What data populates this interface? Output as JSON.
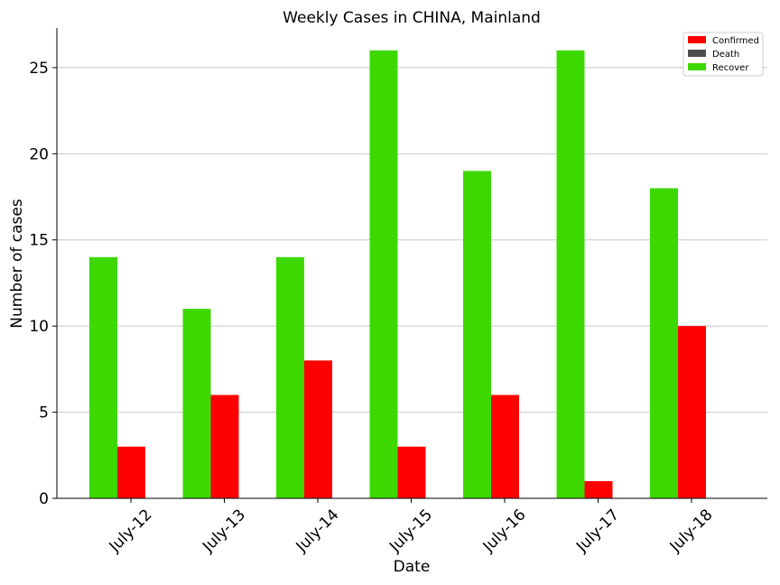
{
  "chart_data": {
    "type": "bar",
    "title": "Weekly Cases in CHINA, Mainland",
    "xlabel": "Date",
    "ylabel": "Number of cases",
    "categories": [
      "July-12",
      "July-13",
      "July-14",
      "July-15",
      "July-16",
      "July-17",
      "July-18"
    ],
    "series": [
      {
        "name": "Recover",
        "color": "#3dd800",
        "values": [
          14,
          11,
          14,
          26,
          19,
          26,
          18
        ]
      },
      {
        "name": "Confirmed",
        "color": "#ff0000",
        "values": [
          3,
          6,
          8,
          3,
          6,
          1,
          10
        ]
      },
      {
        "name": "Death",
        "color": "#4d4d4d",
        "values": [
          0,
          0,
          0,
          0,
          0,
          0,
          0
        ]
      }
    ],
    "ylim": [
      0,
      27.3
    ],
    "yticks": [
      0,
      5,
      10,
      15,
      20,
      25
    ],
    "grid": "horizontal",
    "legend": {
      "position": "top-right",
      "entries": [
        {
          "name": "Confirmed",
          "color": "#ff0000"
        },
        {
          "name": "Death",
          "color": "#4d4d4d"
        },
        {
          "name": "Recover",
          "color": "#3dd800"
        }
      ]
    }
  }
}
